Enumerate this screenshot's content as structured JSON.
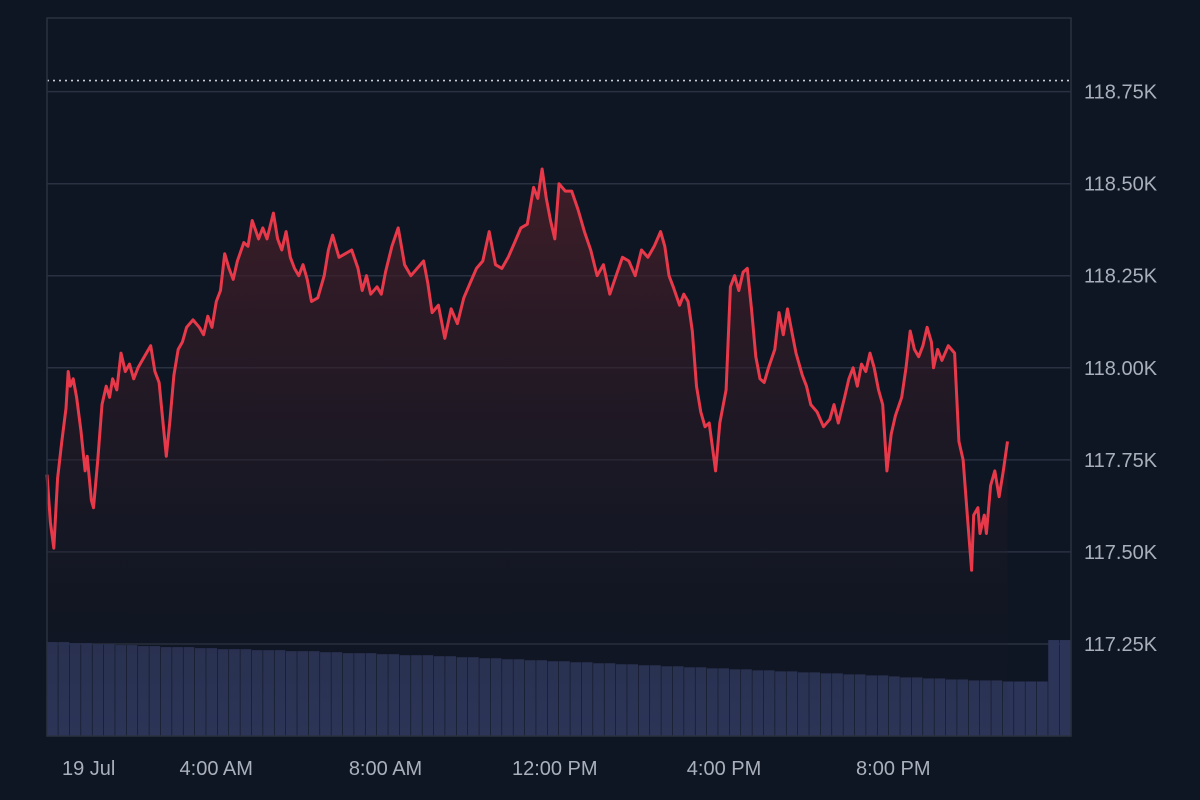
{
  "chart_data": {
    "type": "line",
    "ylim": [
      117.0,
      118.95
    ],
    "y_ticks": [
      {
        "value": 117.25,
        "label": "117.25K"
      },
      {
        "value": 117.5,
        "label": "117.50K"
      },
      {
        "value": 117.75,
        "label": "117.75K"
      },
      {
        "value": 118.0,
        "label": "118.00K"
      },
      {
        "value": 118.25,
        "label": "118.25K"
      },
      {
        "value": 118.5,
        "label": "118.50K"
      },
      {
        "value": 118.75,
        "label": "118.75K"
      }
    ],
    "x_ticks": [
      {
        "hour": 0,
        "label": "19 Jul"
      },
      {
        "hour": 4,
        "label": "4:00 AM"
      },
      {
        "hour": 8,
        "label": "8:00 AM"
      },
      {
        "hour": 12,
        "label": "12:00 PM"
      },
      {
        "hour": 16,
        "label": "4:00 PM"
      },
      {
        "hour": 20,
        "label": "8:00 PM"
      }
    ],
    "x_range_hours": [
      0,
      24.2
    ],
    "reference_line": {
      "value": 118.78,
      "style": "dotted"
    },
    "grid": true,
    "axis_position": "right",
    "colors": {
      "price_line": "#e8394a",
      "area_top": "#4a1f28",
      "volume": "#2c3557",
      "grid": "#2a3140",
      "background": "#0f1623"
    },
    "series": [
      {
        "type": "line",
        "points": [
          [
            0.0,
            117.71
          ],
          [
            0.08,
            117.58
          ],
          [
            0.16,
            117.51
          ],
          [
            0.25,
            117.7
          ],
          [
            0.35,
            117.8
          ],
          [
            0.45,
            117.89
          ],
          [
            0.5,
            117.99
          ],
          [
            0.55,
            117.95
          ],
          [
            0.62,
            117.97
          ],
          [
            0.7,
            117.92
          ],
          [
            0.8,
            117.83
          ],
          [
            0.9,
            117.72
          ],
          [
            0.95,
            117.76
          ],
          [
            1.05,
            117.64
          ],
          [
            1.1,
            117.62
          ],
          [
            1.2,
            117.75
          ],
          [
            1.3,
            117.9
          ],
          [
            1.4,
            117.95
          ],
          [
            1.48,
            117.92
          ],
          [
            1.55,
            117.97
          ],
          [
            1.65,
            117.94
          ],
          [
            1.75,
            118.04
          ],
          [
            1.85,
            117.99
          ],
          [
            1.95,
            118.01
          ],
          [
            2.05,
            117.97
          ],
          [
            2.15,
            118.0
          ],
          [
            2.25,
            118.02
          ],
          [
            2.35,
            118.04
          ],
          [
            2.45,
            118.06
          ],
          [
            2.55,
            117.99
          ],
          [
            2.65,
            117.96
          ],
          [
            2.75,
            117.84
          ],
          [
            2.82,
            117.76
          ],
          [
            2.9,
            117.85
          ],
          [
            3.0,
            117.98
          ],
          [
            3.1,
            118.05
          ],
          [
            3.2,
            118.07
          ],
          [
            3.3,
            118.11
          ],
          [
            3.45,
            118.13
          ],
          [
            3.6,
            118.11
          ],
          [
            3.7,
            118.09
          ],
          [
            3.8,
            118.14
          ],
          [
            3.9,
            118.11
          ],
          [
            4.0,
            118.18
          ],
          [
            4.1,
            118.21
          ],
          [
            4.2,
            118.31
          ],
          [
            4.3,
            118.27
          ],
          [
            4.4,
            118.24
          ],
          [
            4.5,
            118.29
          ],
          [
            4.65,
            118.34
          ],
          [
            4.75,
            118.33
          ],
          [
            4.85,
            118.4
          ],
          [
            5.0,
            118.35
          ],
          [
            5.1,
            118.38
          ],
          [
            5.2,
            118.35
          ],
          [
            5.35,
            118.42
          ],
          [
            5.45,
            118.35
          ],
          [
            5.55,
            118.32
          ],
          [
            5.65,
            118.37
          ],
          [
            5.75,
            118.3
          ],
          [
            5.85,
            118.27
          ],
          [
            5.95,
            118.25
          ],
          [
            6.05,
            118.28
          ],
          [
            6.15,
            118.24
          ],
          [
            6.25,
            118.18
          ],
          [
            6.4,
            118.19
          ],
          [
            6.55,
            118.25
          ],
          [
            6.65,
            118.32
          ],
          [
            6.75,
            118.36
          ],
          [
            6.9,
            118.3
          ],
          [
            7.05,
            118.31
          ],
          [
            7.2,
            118.32
          ],
          [
            7.35,
            118.27
          ],
          [
            7.45,
            118.21
          ],
          [
            7.55,
            118.25
          ],
          [
            7.65,
            118.2
          ],
          [
            7.8,
            118.22
          ],
          [
            7.9,
            118.2
          ],
          [
            8.0,
            118.26
          ],
          [
            8.15,
            118.33
          ],
          [
            8.3,
            118.38
          ],
          [
            8.45,
            118.28
          ],
          [
            8.6,
            118.25
          ],
          [
            8.75,
            118.27
          ],
          [
            8.9,
            118.29
          ],
          [
            9.0,
            118.23
          ],
          [
            9.1,
            118.15
          ],
          [
            9.25,
            118.17
          ],
          [
            9.4,
            118.08
          ],
          [
            9.55,
            118.16
          ],
          [
            9.7,
            118.12
          ],
          [
            9.85,
            118.19
          ],
          [
            10.0,
            118.23
          ],
          [
            10.15,
            118.27
          ],
          [
            10.3,
            118.29
          ],
          [
            10.45,
            118.37
          ],
          [
            10.6,
            118.28
          ],
          [
            10.75,
            118.27
          ],
          [
            10.9,
            118.3
          ],
          [
            11.05,
            118.34
          ],
          [
            11.2,
            118.38
          ],
          [
            11.35,
            118.39
          ],
          [
            11.5,
            118.49
          ],
          [
            11.6,
            118.46
          ],
          [
            11.7,
            118.54
          ],
          [
            11.8,
            118.46
          ],
          [
            11.9,
            118.4
          ],
          [
            12.0,
            118.35
          ],
          [
            12.1,
            118.5
          ],
          [
            12.25,
            118.48
          ],
          [
            12.4,
            118.48
          ],
          [
            12.55,
            118.43
          ],
          [
            12.7,
            118.37
          ],
          [
            12.85,
            118.32
          ],
          [
            13.0,
            118.25
          ],
          [
            13.15,
            118.28
          ],
          [
            13.3,
            118.2
          ],
          [
            13.45,
            118.25
          ],
          [
            13.6,
            118.3
          ],
          [
            13.75,
            118.29
          ],
          [
            13.9,
            118.25
          ],
          [
            14.05,
            118.32
          ],
          [
            14.2,
            118.3
          ],
          [
            14.35,
            118.33
          ],
          [
            14.5,
            118.37
          ],
          [
            14.6,
            118.33
          ],
          [
            14.7,
            118.25
          ],
          [
            14.8,
            118.22
          ],
          [
            14.95,
            118.17
          ],
          [
            15.05,
            118.2
          ],
          [
            15.15,
            118.18
          ],
          [
            15.25,
            118.1
          ],
          [
            15.35,
            117.95
          ],
          [
            15.45,
            117.88
          ],
          [
            15.55,
            117.84
          ],
          [
            15.65,
            117.85
          ],
          [
            15.8,
            117.72
          ],
          [
            15.9,
            117.85
          ],
          [
            16.05,
            117.94
          ],
          [
            16.15,
            118.22
          ],
          [
            16.25,
            118.25
          ],
          [
            16.35,
            118.21
          ],
          [
            16.45,
            118.26
          ],
          [
            16.55,
            118.27
          ],
          [
            16.65,
            118.16
          ],
          [
            16.75,
            118.03
          ],
          [
            16.85,
            117.97
          ],
          [
            16.95,
            117.96
          ],
          [
            17.05,
            118.0
          ],
          [
            17.2,
            118.05
          ],
          [
            17.3,
            118.15
          ],
          [
            17.4,
            118.09
          ],
          [
            17.5,
            118.16
          ],
          [
            17.6,
            118.1
          ],
          [
            17.7,
            118.04
          ],
          [
            17.85,
            117.98
          ],
          [
            17.95,
            117.95
          ],
          [
            18.05,
            117.9
          ],
          [
            18.2,
            117.88
          ],
          [
            18.35,
            117.84
          ],
          [
            18.5,
            117.86
          ],
          [
            18.6,
            117.9
          ],
          [
            18.7,
            117.85
          ],
          [
            18.85,
            117.92
          ],
          [
            18.95,
            117.97
          ],
          [
            19.05,
            118.0
          ],
          [
            19.15,
            117.95
          ],
          [
            19.25,
            118.01
          ],
          [
            19.35,
            117.99
          ],
          [
            19.45,
            118.04
          ],
          [
            19.55,
            118.0
          ],
          [
            19.65,
            117.94
          ],
          [
            19.75,
            117.9
          ],
          [
            19.85,
            117.72
          ],
          [
            19.95,
            117.82
          ],
          [
            20.05,
            117.87
          ],
          [
            20.2,
            117.92
          ],
          [
            20.3,
            118.0
          ],
          [
            20.4,
            118.1
          ],
          [
            20.5,
            118.05
          ],
          [
            20.6,
            118.03
          ],
          [
            20.7,
            118.06
          ],
          [
            20.8,
            118.11
          ],
          [
            20.9,
            118.07
          ],
          [
            20.95,
            118.0
          ],
          [
            21.05,
            118.05
          ],
          [
            21.15,
            118.02
          ],
          [
            21.3,
            118.06
          ],
          [
            21.45,
            118.04
          ],
          [
            21.55,
            117.8
          ],
          [
            21.65,
            117.75
          ],
          [
            21.75,
            117.6
          ],
          [
            21.85,
            117.45
          ],
          [
            21.9,
            117.6
          ],
          [
            22.0,
            117.62
          ],
          [
            22.05,
            117.55
          ],
          [
            22.15,
            117.6
          ],
          [
            22.2,
            117.55
          ],
          [
            22.3,
            117.68
          ],
          [
            22.4,
            117.72
          ],
          [
            22.5,
            117.65
          ],
          [
            22.6,
            117.72
          ],
          [
            22.7,
            117.8
          ]
        ]
      },
      {
        "type": "bar",
        "name": "volume",
        "values": [
          0.93,
          0.93,
          0.92,
          0.92,
          0.91,
          0.91,
          0.9,
          0.9,
          0.89,
          0.89,
          0.88,
          0.88,
          0.88,
          0.87,
          0.87,
          0.86,
          0.86,
          0.86,
          0.85,
          0.85,
          0.85,
          0.84,
          0.84,
          0.84,
          0.83,
          0.83,
          0.82,
          0.82,
          0.82,
          0.81,
          0.81,
          0.8,
          0.8,
          0.8,
          0.79,
          0.79,
          0.78,
          0.78,
          0.77,
          0.77,
          0.76,
          0.76,
          0.75,
          0.75,
          0.74,
          0.74,
          0.73,
          0.73,
          0.72,
          0.72,
          0.71,
          0.71,
          0.7,
          0.7,
          0.69,
          0.69,
          0.68,
          0.68,
          0.67,
          0.67,
          0.66,
          0.66,
          0.65,
          0.65,
          0.64,
          0.64,
          0.63,
          0.63,
          0.62,
          0.62,
          0.61,
          0.61,
          0.6,
          0.6,
          0.59,
          0.58,
          0.58,
          0.57,
          0.57,
          0.56,
          0.56,
          0.55,
          0.55,
          0.55,
          0.54,
          0.54,
          0.54,
          0.54,
          0.95,
          0.95
        ]
      }
    ]
  }
}
